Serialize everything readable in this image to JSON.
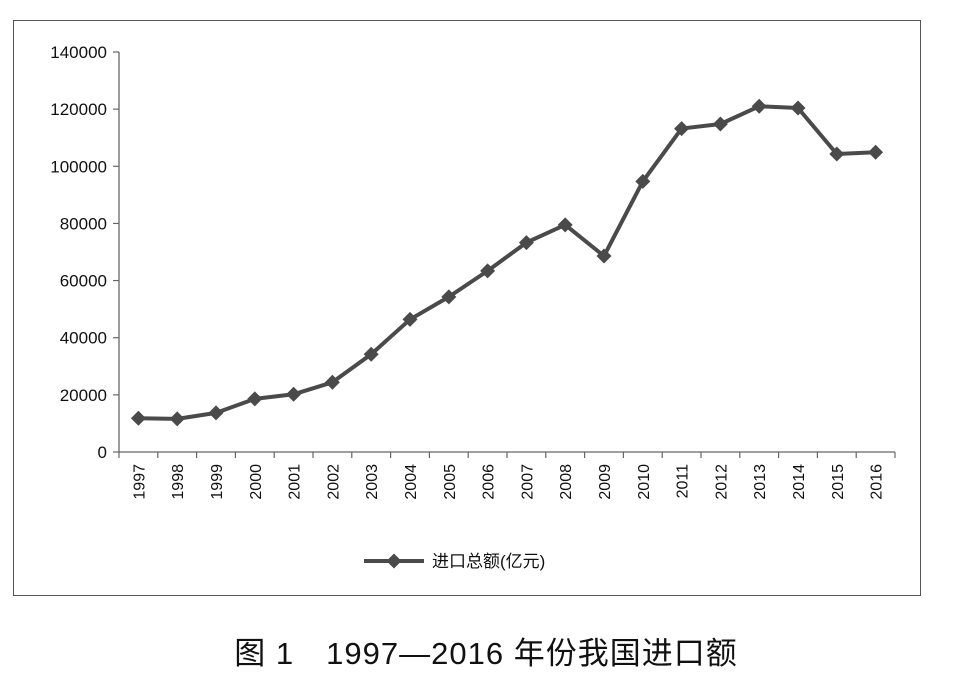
{
  "chart_data": {
    "type": "line",
    "x": [
      "1997",
      "1998",
      "1999",
      "2000",
      "2001",
      "2002",
      "2003",
      "2004",
      "2005",
      "2006",
      "2007",
      "2008",
      "2009",
      "2010",
      "2011",
      "2012",
      "2013",
      "2014",
      "2015",
      "2016"
    ],
    "series": [
      {
        "name": "进口总额(亿元)",
        "values": [
          11800,
          11600,
          13700,
          18600,
          20200,
          24400,
          34200,
          46400,
          54300,
          63400,
          73300,
          79500,
          68600,
          94700,
          113200,
          114800,
          121000,
          120400,
          104300,
          104900
        ],
        "color": "#4a4a4a",
        "marker": "diamond"
      }
    ],
    "yticks": [
      "0",
      "20000",
      "40000",
      "60000",
      "80000",
      "100000",
      "120000",
      "140000"
    ],
    "ylim": [
      0,
      140000
    ],
    "grid": false,
    "legend_position": "bottom"
  },
  "caption": "图 1　1997—2016 年份我国进口额"
}
